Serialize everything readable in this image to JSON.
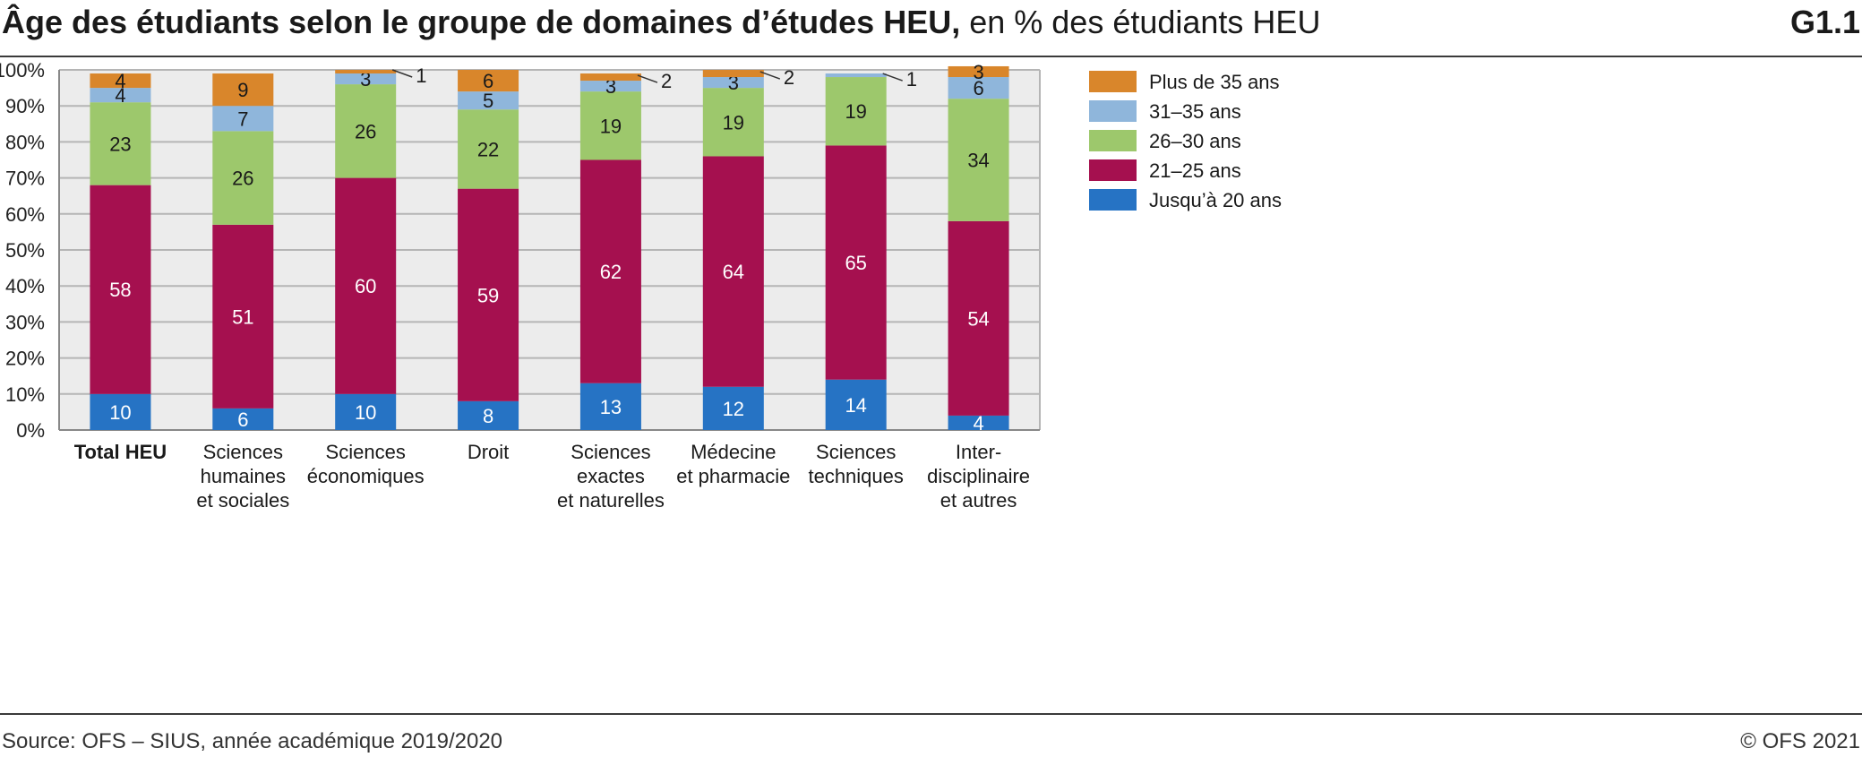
{
  "header": {
    "title_bold": "Âge des étudiants selon le groupe de domaines d’études HEU,",
    "title_rest": " en % des étudiants HEU",
    "code": "G1.1"
  },
  "footer": {
    "source": "Source: OFS – SIUS, année académique 2019/2020",
    "copyright": "© OFS 2021"
  },
  "chart_data": {
    "type": "bar",
    "stacked": true,
    "title": "Âge des étudiants selon le groupe de domaines d’études HEU, en % des étudiants HEU",
    "ylim": [
      0,
      100
    ],
    "yticks": [
      "0%",
      "10%",
      "20%",
      "30%",
      "40%",
      "50%",
      "60%",
      "70%",
      "80%",
      "90%",
      "100%"
    ],
    "grid": true,
    "legend_position": "right",
    "categories": [
      "Total HEU",
      "Sciences humaines et sociales",
      "Sciences économiques",
      "Droit",
      "Sciences exactes et naturelles",
      "Médecine et pharmacie",
      "Sciences techniques",
      "Inter-disciplinaire et autres"
    ],
    "category_lines": [
      [
        "Total HEU"
      ],
      [
        "Sciences",
        "humaines",
        "et sociales"
      ],
      [
        "Sciences",
        "économiques"
      ],
      [
        "Droit"
      ],
      [
        "Sciences",
        "exactes",
        "et naturelles"
      ],
      [
        "Médecine",
        "et pharmacie"
      ],
      [
        "Sciences",
        "techniques"
      ],
      [
        "Inter-",
        "disciplinaire",
        "et autres"
      ]
    ],
    "bold_category": 0,
    "series": [
      {
        "name": "Jusqu’à 20 ans",
        "color": "#2673c4",
        "values": [
          10,
          6,
          10,
          8,
          13,
          12,
          14,
          4
        ]
      },
      {
        "name": "21–25 ans",
        "color": "#a5104f",
        "values": [
          58,
          51,
          60,
          59,
          62,
          64,
          65,
          54
        ]
      },
      {
        "name": "26–30 ans",
        "color": "#9dc86c",
        "values": [
          23,
          26,
          26,
          22,
          19,
          19,
          19,
          34
        ]
      },
      {
        "name": "31–35 ans",
        "color": "#8fb6db",
        "values": [
          4,
          7,
          3,
          5,
          3,
          3,
          1,
          6
        ]
      },
      {
        "name": "Plus de 35 ans",
        "color": "#d9862b",
        "values": [
          4,
          9,
          1,
          6,
          2,
          2,
          0,
          3
        ]
      }
    ],
    "legend_order": [
      "Plus de 35 ans",
      "31–35 ans",
      "26–30 ans",
      "21–25 ans",
      "Jusqu’à 20 ans"
    ],
    "plot_background": "#ececec"
  }
}
